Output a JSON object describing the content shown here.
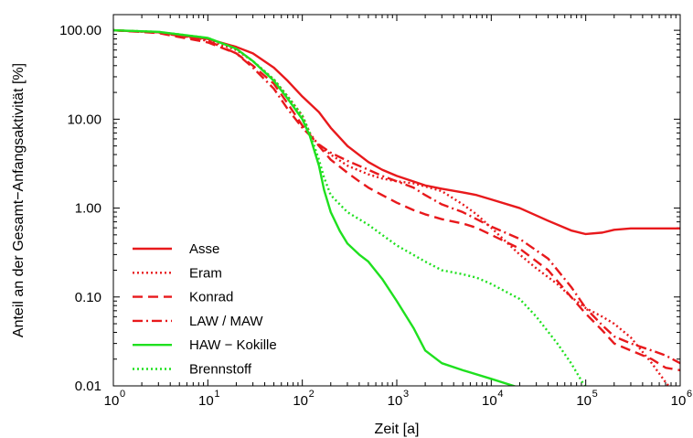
{
  "chart_data": {
    "type": "line",
    "xlabel": "Zeit [a]",
    "ylabel": "Anteil an der Gesamt−Anfangsaktivität [%]",
    "x_scale": "log",
    "y_scale": "log",
    "xlim": [
      1,
      1000000
    ],
    "ylim": [
      0.01,
      150
    ],
    "x_ticks": [
      {
        "value": 1,
        "base": "10",
        "exp": "0"
      },
      {
        "value": 10,
        "base": "10",
        "exp": "1"
      },
      {
        "value": 100,
        "base": "10",
        "exp": "2"
      },
      {
        "value": 1000,
        "base": "10",
        "exp": "3"
      },
      {
        "value": 10000,
        "base": "10",
        "exp": "4"
      },
      {
        "value": 100000,
        "base": "10",
        "exp": "5"
      },
      {
        "value": 1000000,
        "base": "10",
        "exp": "6"
      }
    ],
    "y_ticks": [
      {
        "value": 100,
        "label": "100.00"
      },
      {
        "value": 10,
        "label": "10.00"
      },
      {
        "value": 1,
        "label": "1.00"
      },
      {
        "value": 0.1,
        "label": "0.10"
      },
      {
        "value": 0.01,
        "label": "0.01"
      }
    ],
    "grid": false,
    "legend_position": "bottom-left",
    "series": [
      {
        "name": "Asse",
        "color": "#e8191c",
        "dash": "solid",
        "points": [
          [
            1,
            100
          ],
          [
            3,
            95
          ],
          [
            10,
            80
          ],
          [
            20,
            65
          ],
          [
            30,
            55
          ],
          [
            50,
            38
          ],
          [
            70,
            27
          ],
          [
            100,
            18
          ],
          [
            150,
            12
          ],
          [
            200,
            8
          ],
          [
            300,
            5
          ],
          [
            500,
            3.3
          ],
          [
            700,
            2.7
          ],
          [
            1000,
            2.3
          ],
          [
            2000,
            1.8
          ],
          [
            3000,
            1.65
          ],
          [
            5000,
            1.5
          ],
          [
            7000,
            1.4
          ],
          [
            10000,
            1.25
          ],
          [
            20000,
            1
          ],
          [
            40000,
            0.72
          ],
          [
            70000,
            0.56
          ],
          [
            100000,
            0.51
          ],
          [
            150000,
            0.53
          ],
          [
            200000,
            0.57
          ],
          [
            300000,
            0.59
          ],
          [
            1000000,
            0.59
          ]
        ]
      },
      {
        "name": "Eram",
        "color": "#e8191c",
        "dash": "dotted",
        "points": [
          [
            1,
            100
          ],
          [
            3,
            95
          ],
          [
            10,
            78
          ],
          [
            20,
            60
          ],
          [
            30,
            45
          ],
          [
            50,
            28
          ],
          [
            70,
            18
          ],
          [
            100,
            11
          ],
          [
            120,
            7
          ],
          [
            150,
            5
          ],
          [
            200,
            4
          ],
          [
            300,
            3
          ],
          [
            500,
            2.4
          ],
          [
            700,
            2.15
          ],
          [
            1000,
            2
          ],
          [
            1500,
            1.9
          ],
          [
            2000,
            1.75
          ],
          [
            3000,
            1.55
          ],
          [
            5000,
            1.1
          ],
          [
            7000,
            0.85
          ],
          [
            10000,
            0.6
          ],
          [
            15000,
            0.4
          ],
          [
            20000,
            0.3
          ],
          [
            30000,
            0.21
          ],
          [
            50000,
            0.14
          ],
          [
            70000,
            0.1
          ],
          [
            100000,
            0.075
          ],
          [
            150000,
            0.06
          ],
          [
            200000,
            0.05
          ],
          [
            300000,
            0.035
          ],
          [
            500000,
            0.018
          ],
          [
            700000,
            0.011
          ],
          [
            1000000,
            0.007
          ]
        ]
      },
      {
        "name": "Konrad",
        "color": "#e8191c",
        "dash": "dashed",
        "points": [
          [
            1,
            100
          ],
          [
            3,
            93
          ],
          [
            10,
            73
          ],
          [
            20,
            55
          ],
          [
            30,
            40
          ],
          [
            50,
            25
          ],
          [
            70,
            15
          ],
          [
            100,
            8.5
          ],
          [
            150,
            5
          ],
          [
            200,
            3.5
          ],
          [
            300,
            2.5
          ],
          [
            400,
            2
          ],
          [
            500,
            1.7
          ],
          [
            700,
            1.4
          ],
          [
            1000,
            1.15
          ],
          [
            1500,
            0.95
          ],
          [
            2000,
            0.85
          ],
          [
            3000,
            0.75
          ],
          [
            5000,
            0.67
          ],
          [
            7000,
            0.6
          ],
          [
            10000,
            0.5
          ],
          [
            20000,
            0.35
          ],
          [
            40000,
            0.2
          ],
          [
            70000,
            0.1
          ],
          [
            100000,
            0.065
          ],
          [
            150000,
            0.042
          ],
          [
            200000,
            0.03
          ],
          [
            300000,
            0.025
          ],
          [
            500000,
            0.02
          ],
          [
            700000,
            0.016
          ],
          [
            1000000,
            0.015
          ]
        ]
      },
      {
        "name": "LAW / MAW",
        "color": "#e8191c",
        "dash": "dashdot",
        "points": [
          [
            1,
            100
          ],
          [
            3,
            95
          ],
          [
            10,
            76
          ],
          [
            20,
            55
          ],
          [
            30,
            38
          ],
          [
            50,
            22
          ],
          [
            70,
            13
          ],
          [
            100,
            8
          ],
          [
            150,
            5.2
          ],
          [
            200,
            4.2
          ],
          [
            300,
            3.4
          ],
          [
            500,
            2.7
          ],
          [
            700,
            2.3
          ],
          [
            1000,
            2
          ],
          [
            1500,
            1.7
          ],
          [
            2000,
            1.4
          ],
          [
            3000,
            1.1
          ],
          [
            5000,
            0.9
          ],
          [
            7000,
            0.75
          ],
          [
            10000,
            0.62
          ],
          [
            20000,
            0.45
          ],
          [
            40000,
            0.27
          ],
          [
            70000,
            0.13
          ],
          [
            100000,
            0.075
          ],
          [
            150000,
            0.048
          ],
          [
            200000,
            0.036
          ],
          [
            300000,
            0.03
          ],
          [
            500000,
            0.025
          ],
          [
            700000,
            0.022
          ],
          [
            1000000,
            0.018
          ]
        ]
      },
      {
        "name": "HAW − Kokille",
        "color": "#1fe01f",
        "dash": "solid",
        "points": [
          [
            1,
            100
          ],
          [
            3,
            96
          ],
          [
            10,
            82
          ],
          [
            20,
            62
          ],
          [
            30,
            45
          ],
          [
            50,
            27
          ],
          [
            70,
            17
          ],
          [
            100,
            10
          ],
          [
            120,
            6.5
          ],
          [
            150,
            3
          ],
          [
            170,
            1.6
          ],
          [
            200,
            0.9
          ],
          [
            250,
            0.55
          ],
          [
            300,
            0.4
          ],
          [
            400,
            0.3
          ],
          [
            500,
            0.25
          ],
          [
            700,
            0.16
          ],
          [
            1000,
            0.09
          ],
          [
            1500,
            0.045
          ],
          [
            2000,
            0.025
          ],
          [
            3000,
            0.018
          ],
          [
            5000,
            0.015
          ],
          [
            10000,
            0.012
          ],
          [
            20000,
            0.0095
          ]
        ]
      },
      {
        "name": "Brennstoff",
        "color": "#1fe01f",
        "dash": "dotted",
        "points": [
          [
            1,
            100
          ],
          [
            3,
            96
          ],
          [
            10,
            82
          ],
          [
            20,
            62
          ],
          [
            30,
            45
          ],
          [
            50,
            28
          ],
          [
            70,
            18
          ],
          [
            100,
            11
          ],
          [
            120,
            7
          ],
          [
            150,
            3.5
          ],
          [
            170,
            2.2
          ],
          [
            200,
            1.4
          ],
          [
            300,
            0.9
          ],
          [
            500,
            0.65
          ],
          [
            700,
            0.5
          ],
          [
            1000,
            0.38
          ],
          [
            2000,
            0.25
          ],
          [
            3000,
            0.2
          ],
          [
            5000,
            0.18
          ],
          [
            7000,
            0.165
          ],
          [
            10000,
            0.14
          ],
          [
            20000,
            0.095
          ],
          [
            30000,
            0.06
          ],
          [
            50000,
            0.03
          ],
          [
            70000,
            0.018
          ],
          [
            100000,
            0.0095
          ]
        ]
      }
    ]
  }
}
